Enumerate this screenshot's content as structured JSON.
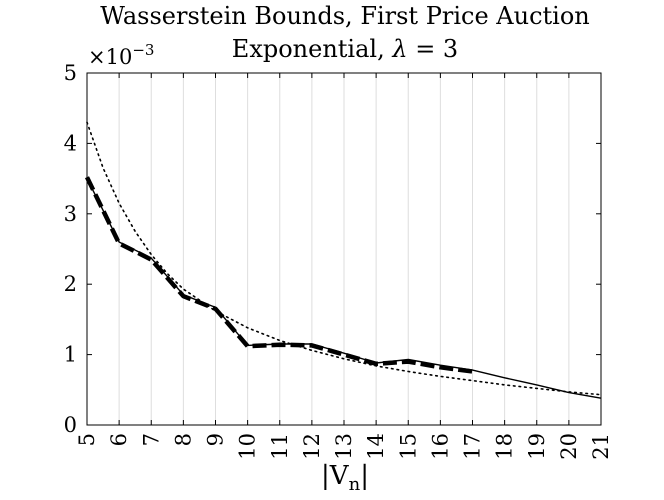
{
  "chart_data": {
    "type": "line",
    "title_line1": "Wasserstein Bounds, First Price Auction",
    "title_line2_prefix": "Exponential, ",
    "title_line2_symbol": "λ",
    "title_line2_suffix": " = 3",
    "xlabel": "|V",
    "xlabel_sub": "n",
    "xlabel_end": "|",
    "ylabel": "",
    "y_exponent_prefix": "×10",
    "y_exponent_power": "−3",
    "xlim": [
      5,
      21
    ],
    "ylim": [
      0,
      5
    ],
    "x_ticks": [
      5,
      6,
      7,
      8,
      9,
      10,
      11,
      12,
      13,
      14,
      15,
      16,
      17,
      18,
      19,
      20,
      21
    ],
    "x_tick_labels": [
      "5",
      "6",
      "7",
      "8",
      "9",
      "10",
      "11",
      "12",
      "13",
      "14",
      "15",
      "16",
      "17",
      "18",
      "19",
      "20",
      "21"
    ],
    "y_ticks": [
      0,
      1,
      2,
      3,
      4,
      5
    ],
    "y_tick_labels": [
      "0",
      "1",
      "2",
      "3",
      "4",
      "5"
    ],
    "grid": "vertical",
    "series": [
      {
        "style": "solid",
        "x": [
          5,
          6,
          7,
          8,
          9,
          10,
          11,
          12,
          13,
          14,
          15,
          16,
          17,
          18,
          19,
          20,
          21
        ],
        "values": [
          3.5,
          2.6,
          2.37,
          1.85,
          1.67,
          1.13,
          1.15,
          1.15,
          1.02,
          0.88,
          0.93,
          0.85,
          0.78,
          0.67,
          0.57,
          0.46,
          0.38
        ]
      },
      {
        "style": "dashed",
        "x": [
          5,
          6,
          7,
          8,
          9,
          10,
          11,
          12,
          13,
          14,
          15,
          16,
          17
        ],
        "values": [
          3.52,
          2.58,
          2.35,
          1.83,
          1.65,
          1.12,
          1.14,
          1.13,
          1.0,
          0.87,
          0.9,
          0.82,
          0.76
        ]
      },
      {
        "style": "dotted",
        "x": [
          5,
          5.5,
          6,
          6.5,
          7,
          7.5,
          8,
          9,
          10,
          11,
          12,
          13,
          14,
          15,
          16,
          17,
          18,
          19,
          20,
          21
        ],
        "values": [
          4.3,
          3.65,
          3.15,
          2.75,
          2.42,
          2.15,
          1.93,
          1.62,
          1.38,
          1.2,
          1.06,
          0.94,
          0.84,
          0.76,
          0.69,
          0.63,
          0.57,
          0.52,
          0.47,
          0.43
        ]
      }
    ]
  }
}
